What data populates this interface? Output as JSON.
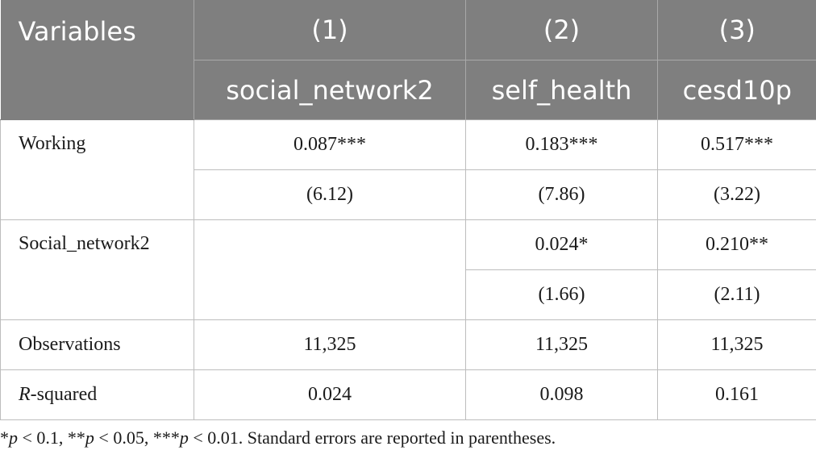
{
  "header": {
    "variables_label": "Variables",
    "col_numbers": [
      "(1)",
      "(2)",
      "(3)"
    ],
    "col_names": [
      "social_network2",
      "self_health",
      "cesd10p"
    ]
  },
  "rows": {
    "working": {
      "label": "Working",
      "coef": [
        "0.087***",
        "0.183***",
        "0.517***"
      ],
      "se": [
        "(6.12)",
        "(7.86)",
        "(3.22)"
      ]
    },
    "social_network2": {
      "label": "Social_network2",
      "coef": [
        "",
        "0.024*",
        "0.210**"
      ],
      "se": [
        "",
        "(1.66)",
        "(2.11)"
      ]
    },
    "observations": {
      "label": "Observations",
      "values": [
        "11,325",
        "11,325",
        "11,325"
      ]
    },
    "r_squared": {
      "label_italic": "R",
      "label_rest": "-squared",
      "values": [
        "0.024",
        "0.098",
        "0.161"
      ]
    }
  },
  "footnote": {
    "p1": "p",
    "t1": " < 0.1, **",
    "p2": "p",
    "t2": " < 0.05, ***",
    "p3": "p",
    "t3": " < 0.01. Standard errors are reported in parentheses.",
    "lead": "*"
  }
}
